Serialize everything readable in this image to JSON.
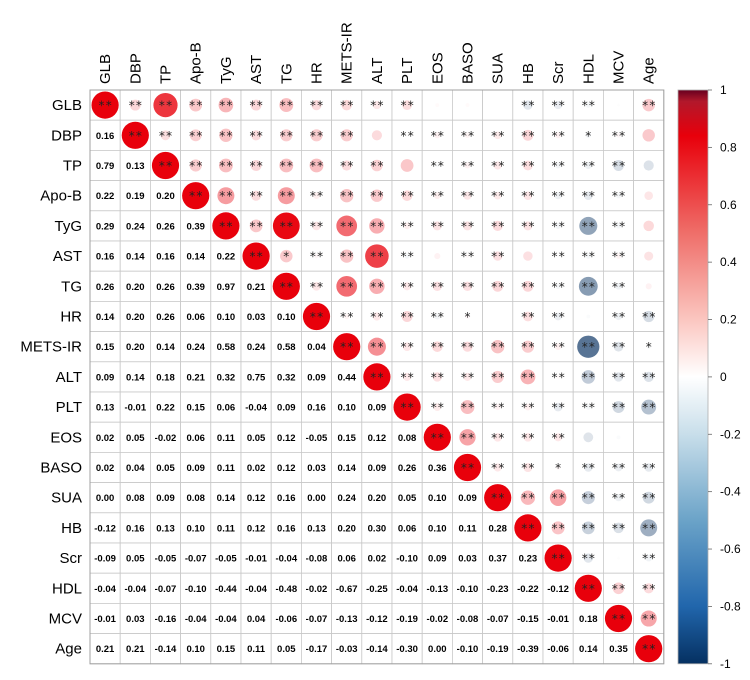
{
  "chart_data": {
    "type": "heatmap",
    "subtype": "correlation-matrix-mixed",
    "variables": [
      "GLB",
      "DBP",
      "TP",
      "Apo-B",
      "TyG",
      "AST",
      "TG",
      "HR",
      "METS-IR",
      "ALT",
      "PLT",
      "EOS",
      "BASO",
      "SUA",
      "HB",
      "Scr",
      "HDL",
      "MCV",
      "Age"
    ],
    "lower_triangle_values": [
      [],
      [
        0.16
      ],
      [
        0.79,
        0.13
      ],
      [
        0.22,
        0.19,
        0.2
      ],
      [
        0.29,
        0.24,
        0.26,
        0.39
      ],
      [
        0.16,
        0.14,
        0.16,
        0.14,
        0.22
      ],
      [
        0.26,
        0.2,
        0.26,
        0.39,
        0.97,
        0.21
      ],
      [
        0.14,
        0.2,
        0.26,
        0.06,
        0.1,
        0.03,
        0.1
      ],
      [
        0.15,
        0.2,
        0.14,
        0.24,
        0.58,
        0.24,
        0.58,
        0.04
      ],
      [
        0.09,
        0.14,
        0.18,
        0.21,
        0.32,
        0.75,
        0.32,
        0.09,
        0.44
      ],
      [
        0.13,
        -0.01,
        0.22,
        0.15,
        0.06,
        -0.04,
        0.09,
        0.16,
        0.1,
        0.09
      ],
      [
        0.02,
        0.05,
        -0.02,
        0.06,
        0.11,
        0.05,
        0.12,
        -0.05,
        0.15,
        0.12,
        0.08
      ],
      [
        0.02,
        0.04,
        0.05,
        0.09,
        0.11,
        0.02,
        0.12,
        0.03,
        0.14,
        0.09,
        0.26,
        0.36
      ],
      [
        0.0,
        0.08,
        0.09,
        0.08,
        0.14,
        0.12,
        0.16,
        0.0,
        0.24,
        0.2,
        0.05,
        0.1,
        0.09
      ],
      [
        -0.12,
        0.16,
        0.13,
        0.1,
        0.11,
        0.12,
        0.16,
        0.13,
        0.2,
        0.3,
        0.06,
        0.1,
        0.11,
        0.28
      ],
      [
        -0.09,
        0.05,
        -0.05,
        -0.07,
        -0.05,
        -0.01,
        -0.04,
        -0.08,
        0.06,
        0.02,
        -0.1,
        0.09,
        0.03,
        0.37,
        0.23
      ],
      [
        -0.04,
        -0.04,
        -0.07,
        -0.1,
        -0.44,
        -0.04,
        -0.48,
        -0.02,
        -0.67,
        -0.25,
        -0.04,
        -0.13,
        -0.1,
        -0.23,
        -0.22,
        -0.12
      ],
      [
        -0.01,
        0.03,
        -0.16,
        -0.04,
        -0.04,
        0.04,
        -0.06,
        -0.07,
        -0.13,
        -0.12,
        -0.19,
        -0.02,
        -0.08,
        -0.07,
        -0.15,
        -0.01,
        0.18
      ],
      [
        0.21,
        0.21,
        -0.14,
        0.1,
        0.15,
        0.11,
        0.05,
        -0.17,
        -0.03,
        -0.14,
        -0.3,
        0.0,
        -0.1,
        -0.19,
        -0.39,
        -0.06,
        0.14,
        0.35
      ]
    ],
    "upper_significance": [
      [
        "**",
        "**",
        "**",
        "**",
        "**",
        "**",
        "**",
        "**",
        "**",
        "**",
        "",
        "",
        "",
        "**",
        "**",
        "**",
        "",
        "**"
      ],
      [
        "**",
        "**",
        "**",
        "**",
        "**",
        "**",
        "**",
        "",
        "**",
        "**",
        "**",
        "**",
        "**",
        "**",
        "*",
        "**"
      ],
      [
        "**",
        "**",
        "**",
        "**",
        "**",
        "**",
        "**",
        "",
        "**",
        "**",
        "**",
        "**",
        "**",
        "**",
        "**"
      ],
      [
        "**",
        "**",
        "**",
        "**",
        "**",
        "**",
        "**",
        "**",
        "**",
        "**",
        "**",
        "**",
        "**",
        "**"
      ],
      [
        "**",
        "**",
        "**",
        "**",
        "**",
        "**",
        "**",
        "**",
        "**",
        "**",
        "**",
        "**",
        "**"
      ],
      [
        "*",
        "**",
        "**",
        "**",
        "**",
        "",
        "**",
        "**",
        "",
        "**",
        "**",
        "**"
      ],
      [
        "**",
        "**",
        "**",
        "**",
        "**",
        "**",
        "**",
        "**",
        "**",
        "**",
        "**"
      ],
      [
        "**",
        "**",
        "**",
        "**",
        "*",
        "",
        "**",
        "**",
        "",
        "**",
        "**"
      ],
      [
        "**",
        "**",
        "**",
        "**",
        "**",
        "**",
        "**",
        "**",
        "**",
        "*"
      ],
      [
        "**",
        "**",
        "**",
        "**",
        "**",
        "**",
        "**",
        "**",
        "**"
      ],
      [
        "**",
        "**",
        "**",
        "**",
        "**",
        "**",
        "**",
        "**"
      ],
      [
        "**",
        "**",
        "**",
        "**",
        "",
        "",
        ""
      ],
      [
        "**",
        "**",
        "*",
        "**",
        "**",
        "**"
      ],
      [
        "**",
        "**",
        "**",
        "**",
        "**"
      ],
      [
        "**",
        "**",
        "**",
        "**"
      ],
      [
        "**",
        "",
        "**"
      ],
      [
        "**",
        "**"
      ],
      [
        "**"
      ]
    ],
    "diagonal_marker": "**",
    "colorbar": {
      "range": [
        -1,
        1
      ],
      "ticks": [
        "1",
        "0.8",
        "0.6",
        "0.4",
        "0.2",
        "0",
        "-0.2",
        "-0.4",
        "-0.6",
        "-0.8",
        "-1"
      ],
      "positive_color": "#e8000b",
      "neutral_color": "#ffffff",
      "negative_color": "#053061"
    },
    "grid": true,
    "legend_position": "right"
  }
}
